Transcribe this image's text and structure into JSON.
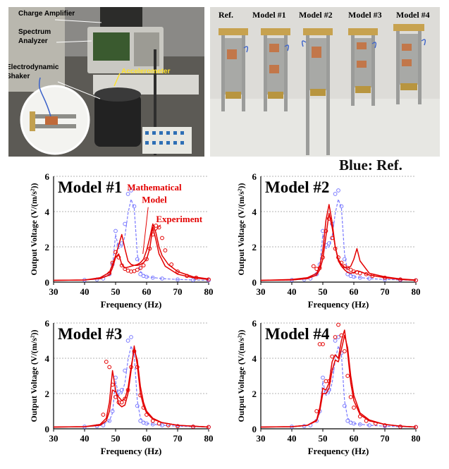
{
  "photo_setup": {
    "labels": {
      "charge_amplifier": "Charge Amplifier",
      "spectrum_analyzer_line1": "Spectrum",
      "spectrum_analyzer_line2": "Analyzer",
      "shaker_line1": "Electrodynamic",
      "shaker_line2": "Shaker",
      "accelerometer": "Accelerometer"
    }
  },
  "photo_models": {
    "labels": [
      "Ref.",
      "Model #1",
      "Model #2",
      "Model #3",
      "Model #4"
    ]
  },
  "legend_note": "Blue: Ref.",
  "colors": {
    "reference": "#7b7bff",
    "model": "#e30000",
    "grid": "#9a9a9a"
  },
  "chart_data": [
    {
      "type": "line",
      "title": "Model #1",
      "xlabel": "Frequency (Hz)",
      "ylabel": "Output Voltage (V/(m/s²))",
      "xlim": [
        30,
        80
      ],
      "ylim": [
        0,
        6
      ],
      "xticks": [
        30,
        40,
        50,
        60,
        70,
        80
      ],
      "yticks": [
        0,
        2,
        4,
        6
      ],
      "annotations": [
        {
          "text": "Mathematical",
          "x": 62.5,
          "y": 5.2
        },
        {
          "text": "Model",
          "x": 62.5,
          "y": 4.5
        },
        {
          "text": "Experiment",
          "x": 70.5,
          "y": 3.4
        }
      ],
      "series": [
        {
          "group": "reference",
          "style": "markers",
          "x": [
            40,
            44,
            46,
            48,
            49,
            50,
            51,
            52,
            53,
            54,
            55,
            56,
            57,
            58,
            59,
            60,
            62,
            65,
            70,
            75,
            80
          ],
          "y": [
            0.12,
            0.15,
            0.2,
            0.45,
            1.0,
            2.9,
            2.1,
            2.2,
            3.3,
            5.0,
            5.2,
            4.3,
            1.3,
            0.45,
            0.35,
            0.3,
            0.25,
            0.2,
            0.15,
            0.12,
            0.1
          ]
        },
        {
          "group": "reference",
          "style": "dashed",
          "x": [
            30,
            40,
            45,
            48,
            49,
            50,
            51,
            52,
            53,
            54,
            55,
            56,
            57,
            58,
            60,
            65,
            70,
            80
          ],
          "y": [
            0.1,
            0.12,
            0.18,
            0.45,
            0.9,
            2.7,
            1.9,
            2.0,
            2.6,
            3.9,
            4.7,
            4.2,
            1.6,
            0.6,
            0.3,
            0.2,
            0.15,
            0.1
          ]
        },
        {
          "group": "model",
          "style": "line",
          "x": [
            30,
            40,
            45,
            48,
            49,
            50,
            51,
            52,
            53,
            54,
            55,
            56,
            57,
            58,
            59,
            60,
            61,
            62,
            63,
            64,
            65,
            67,
            70,
            75,
            80
          ],
          "y": [
            0.1,
            0.12,
            0.2,
            0.4,
            0.8,
            1.4,
            1.6,
            1.0,
            0.8,
            0.85,
            0.9,
            0.95,
            1.0,
            1.1,
            1.3,
            1.8,
            2.5,
            3.3,
            2.8,
            2.0,
            1.5,
            1.0,
            0.6,
            0.3,
            0.18
          ]
        },
        {
          "group": "model",
          "style": "line",
          "x": [
            30,
            40,
            45,
            48,
            49,
            50,
            51,
            52,
            53,
            54,
            55,
            56,
            57,
            58,
            59,
            60,
            61,
            62,
            63,
            64,
            66,
            70,
            75,
            80
          ],
          "y": [
            0.1,
            0.12,
            0.25,
            0.55,
            1.0,
            1.5,
            2.1,
            2.7,
            1.9,
            1.2,
            1.0,
            0.95,
            0.95,
            1.0,
            1.1,
            1.3,
            1.9,
            3.1,
            2.4,
            1.6,
            0.9,
            0.45,
            0.25,
            0.15
          ]
        },
        {
          "group": "model",
          "style": "markers",
          "x": [
            48,
            49,
            50,
            51,
            52,
            53,
            54,
            55,
            56,
            57,
            58,
            59,
            60,
            61,
            62,
            63,
            64,
            65,
            66,
            68,
            70,
            73,
            76,
            80
          ],
          "y": [
            0.5,
            1.1,
            1.7,
            1.4,
            0.95,
            0.75,
            0.65,
            0.6,
            0.62,
            0.7,
            0.8,
            0.95,
            1.3,
            1.9,
            2.7,
            3.2,
            3.1,
            2.5,
            1.8,
            1.0,
            0.6,
            0.35,
            0.25,
            0.15
          ]
        }
      ]
    },
    {
      "type": "line",
      "title": "Model #2",
      "xlabel": "Frequency (Hz)",
      "ylabel": "Output Voltage (V/(m/s²))",
      "xlim": [
        30,
        80
      ],
      "ylim": [
        0,
        6
      ],
      "xticks": [
        30,
        40,
        50,
        60,
        70,
        80
      ],
      "yticks": [
        0,
        2,
        4,
        6
      ],
      "annotations": [],
      "series": [
        {
          "group": "reference",
          "style": "markers",
          "x": [
            40,
            44,
            46,
            48,
            49,
            50,
            51,
            52,
            53,
            54,
            55,
            56,
            57,
            58,
            59,
            60,
            62,
            65,
            70,
            75,
            80
          ],
          "y": [
            0.12,
            0.15,
            0.2,
            0.45,
            1.0,
            2.9,
            2.1,
            2.2,
            3.3,
            5.0,
            5.2,
            4.3,
            1.3,
            0.45,
            0.35,
            0.3,
            0.25,
            0.2,
            0.15,
            0.12,
            0.1
          ]
        },
        {
          "group": "reference",
          "style": "dashed",
          "x": [
            30,
            40,
            45,
            48,
            49,
            50,
            51,
            52,
            53,
            54,
            55,
            56,
            57,
            58,
            60,
            65,
            70,
            80
          ],
          "y": [
            0.1,
            0.12,
            0.18,
            0.45,
            0.9,
            2.7,
            1.9,
            2.0,
            2.6,
            3.9,
            4.7,
            4.2,
            1.6,
            0.6,
            0.3,
            0.2,
            0.15,
            0.1
          ]
        },
        {
          "group": "model",
          "style": "line",
          "x": [
            30,
            40,
            45,
            48,
            49,
            50,
            51,
            52,
            53,
            54,
            55,
            56,
            57,
            58,
            59,
            60,
            61,
            62,
            65,
            70,
            75,
            80
          ],
          "y": [
            0.1,
            0.15,
            0.25,
            0.5,
            0.9,
            1.8,
            3.5,
            4.4,
            3.4,
            2.0,
            1.2,
            0.9,
            0.7,
            0.55,
            0.5,
            0.55,
            0.65,
            0.6,
            0.4,
            0.25,
            0.15,
            0.1
          ]
        },
        {
          "group": "model",
          "style": "line",
          "x": [
            30,
            40,
            45,
            48,
            49,
            50,
            51,
            52,
            53,
            54,
            55,
            56,
            57,
            58,
            59,
            60,
            61,
            62,
            65,
            70,
            75,
            80
          ],
          "y": [
            0.1,
            0.12,
            0.2,
            0.4,
            0.7,
            1.3,
            2.6,
            3.9,
            3.1,
            2.0,
            1.3,
            1.0,
            0.85,
            0.8,
            0.9,
            1.3,
            1.9,
            1.2,
            0.5,
            0.3,
            0.18,
            0.12
          ]
        },
        {
          "group": "model",
          "style": "markers",
          "x": [
            47,
            48,
            49,
            50,
            51,
            52,
            53,
            54,
            55,
            56,
            57,
            58,
            59,
            60,
            61,
            62,
            64,
            66,
            70,
            75,
            80
          ],
          "y": [
            0.9,
            0.75,
            0.8,
            1.4,
            2.9,
            3.6,
            2.5,
            1.9,
            1.4,
            1.1,
            0.9,
            0.8,
            0.7,
            0.6,
            0.55,
            0.5,
            0.45,
            0.35,
            0.25,
            0.15,
            0.1
          ]
        }
      ]
    },
    {
      "type": "line",
      "title": "Model #3",
      "xlabel": "Frequency (Hz)",
      "ylabel": "Output Voltage (V/(m/s²))",
      "xlim": [
        30,
        80
      ],
      "ylim": [
        0,
        6
      ],
      "xticks": [
        30,
        40,
        50,
        60,
        70,
        80
      ],
      "yticks": [
        0,
        2,
        4,
        6
      ],
      "annotations": [],
      "series": [
        {
          "group": "reference",
          "style": "markers",
          "x": [
            40,
            44,
            46,
            48,
            49,
            50,
            51,
            52,
            53,
            54,
            55,
            56,
            57,
            58,
            59,
            60,
            62,
            65,
            70,
            75,
            80
          ],
          "y": [
            0.12,
            0.15,
            0.2,
            0.45,
            1.0,
            2.9,
            2.1,
            2.2,
            3.3,
            5.0,
            5.2,
            4.3,
            1.3,
            0.45,
            0.35,
            0.3,
            0.25,
            0.2,
            0.15,
            0.12,
            0.1
          ]
        },
        {
          "group": "reference",
          "style": "dashed",
          "x": [
            30,
            40,
            45,
            48,
            49,
            50,
            51,
            52,
            53,
            54,
            55,
            56,
            57,
            58,
            60,
            65,
            70,
            80
          ],
          "y": [
            0.1,
            0.12,
            0.18,
            0.45,
            0.9,
            2.7,
            1.9,
            2.0,
            2.6,
            3.9,
            4.7,
            4.2,
            1.6,
            0.6,
            0.3,
            0.2,
            0.15,
            0.1
          ]
        },
        {
          "group": "model",
          "style": "line",
          "x": [
            30,
            40,
            45,
            47,
            48,
            49,
            50,
            51,
            52,
            53,
            54,
            55,
            56,
            57,
            58,
            59,
            60,
            62,
            65,
            70,
            75,
            80
          ],
          "y": [
            0.1,
            0.12,
            0.25,
            0.6,
            1.5,
            3.3,
            2.2,
            1.4,
            1.25,
            1.35,
            2.0,
            3.3,
            4.7,
            3.6,
            2.0,
            1.3,
            0.9,
            0.55,
            0.35,
            0.2,
            0.15,
            0.1
          ]
        },
        {
          "group": "model",
          "style": "line",
          "x": [
            30,
            40,
            45,
            47,
            48,
            49,
            50,
            51,
            52,
            53,
            54,
            55,
            56,
            57,
            58,
            59,
            60,
            62,
            65,
            70,
            75,
            80
          ],
          "y": [
            0.1,
            0.12,
            0.2,
            0.45,
            1.0,
            2.2,
            2.1,
            1.8,
            1.6,
            1.7,
            2.3,
            3.5,
            4.5,
            3.9,
            2.4,
            1.5,
            1.0,
            0.6,
            0.35,
            0.2,
            0.15,
            0.1
          ]
        },
        {
          "group": "model",
          "style": "markers",
          "x": [
            46,
            47,
            48,
            49,
            50,
            51,
            52,
            53,
            54,
            55,
            56,
            57,
            58,
            59,
            60,
            62,
            64,
            67,
            70,
            75,
            80
          ],
          "y": [
            0.8,
            3.8,
            3.5,
            2.5,
            1.8,
            1.5,
            1.5,
            1.7,
            2.2,
            3.5,
            4.4,
            3.5,
            1.9,
            1.2,
            0.8,
            0.45,
            0.3,
            0.2,
            0.15,
            0.12,
            0.1
          ]
        }
      ]
    },
    {
      "type": "line",
      "title": "Model #4",
      "xlabel": "Frequency (Hz)",
      "ylabel": "Output Voltage (V/(m/s²))",
      "xlim": [
        30,
        80
      ],
      "ylim": [
        0,
        6
      ],
      "xticks": [
        30,
        40,
        50,
        60,
        70,
        80
      ],
      "yticks": [
        0,
        2,
        4,
        6
      ],
      "annotations": [],
      "series": [
        {
          "group": "reference",
          "style": "markers",
          "x": [
            40,
            44,
            46,
            48,
            49,
            50,
            51,
            52,
            53,
            54,
            55,
            56,
            57,
            58,
            59,
            60,
            62,
            65,
            70,
            75,
            80
          ],
          "y": [
            0.12,
            0.15,
            0.2,
            0.45,
            1.0,
            2.9,
            2.1,
            2.2,
            3.3,
            5.0,
            5.2,
            4.3,
            1.3,
            0.45,
            0.35,
            0.3,
            0.25,
            0.2,
            0.15,
            0.12,
            0.1
          ]
        },
        {
          "group": "reference",
          "style": "dashed",
          "x": [
            30,
            40,
            45,
            48,
            49,
            50,
            51,
            52,
            53,
            54,
            55,
            56,
            57,
            58,
            60,
            65,
            70,
            80
          ],
          "y": [
            0.1,
            0.12,
            0.18,
            0.45,
            0.9,
            2.7,
            1.9,
            2.0,
            2.6,
            3.9,
            4.7,
            4.2,
            1.6,
            0.6,
            0.3,
            0.2,
            0.15,
            0.1
          ]
        },
        {
          "group": "model",
          "style": "line",
          "x": [
            30,
            40,
            45,
            48,
            49,
            50,
            51,
            52,
            53,
            54,
            55,
            56,
            57,
            58,
            59,
            60,
            62,
            65,
            70,
            75,
            80
          ],
          "y": [
            0.1,
            0.12,
            0.2,
            0.5,
            1.2,
            2.3,
            2.2,
            2.6,
            3.8,
            4.2,
            4.0,
            5.0,
            5.6,
            4.3,
            2.6,
            1.6,
            0.8,
            0.45,
            0.25,
            0.15,
            0.1
          ]
        },
        {
          "group": "model",
          "style": "line",
          "x": [
            30,
            40,
            45,
            48,
            49,
            50,
            51,
            52,
            53,
            54,
            55,
            56,
            57,
            58,
            59,
            60,
            62,
            65,
            70,
            75,
            80
          ],
          "y": [
            0.1,
            0.12,
            0.2,
            0.45,
            1.0,
            2.0,
            2.0,
            2.3,
            3.3,
            3.9,
            3.8,
            4.5,
            5.3,
            4.6,
            3.0,
            1.9,
            0.9,
            0.5,
            0.25,
            0.15,
            0.1
          ]
        },
        {
          "group": "model",
          "style": "markers",
          "x": [
            48,
            49,
            50,
            51,
            52,
            53,
            54,
            55,
            56,
            57,
            58,
            59,
            60,
            62,
            64,
            67,
            70,
            75,
            80
          ],
          "y": [
            1.0,
            4.8,
            4.8,
            2.7,
            2.7,
            4.1,
            5.2,
            5.9,
            5.3,
            4.4,
            3.0,
            1.8,
            1.2,
            0.7,
            0.45,
            0.3,
            0.2,
            0.12,
            0.1
          ]
        }
      ]
    }
  ]
}
